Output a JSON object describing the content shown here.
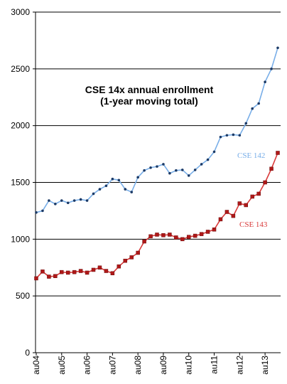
{
  "chart_data": {
    "type": "line",
    "title_lines": [
      "CSE 14x annual enrollment",
      "(1-year moving total)"
    ],
    "xlabel": "",
    "ylabel": "",
    "ylim": [
      0,
      3000
    ],
    "y_ticks": [
      "0",
      "500",
      "1000",
      "1500",
      "2000",
      "2500",
      "3000"
    ],
    "x_ticks": [
      "au04",
      "au05",
      "au06",
      "au07",
      "au08",
      "au09",
      "au10",
      "au11",
      "au12",
      "au13"
    ],
    "grid": true,
    "series": [
      {
        "name": "CSE 142",
        "color": "#78aee8",
        "marker_color": "#1c3a66",
        "values": [
          1235,
          1250,
          1340,
          1310,
          1340,
          1320,
          1340,
          1350,
          1340,
          1400,
          1440,
          1470,
          1530,
          1520,
          1440,
          1415,
          1545,
          1605,
          1630,
          1640,
          1660,
          1580,
          1605,
          1610,
          1560,
          1610,
          1660,
          1700,
          1770,
          1900,
          1915,
          1920,
          1915,
          2020,
          2150,
          2195,
          2385,
          2500,
          2685
        ]
      },
      {
        "name": "CSE 143",
        "color": "#d93a3a",
        "marker_color": "#b01818",
        "values": [
          655,
          715,
          670,
          675,
          710,
          705,
          710,
          720,
          705,
          730,
          750,
          720,
          700,
          760,
          810,
          840,
          880,
          980,
          1025,
          1040,
          1035,
          1040,
          1015,
          1000,
          1020,
          1030,
          1045,
          1065,
          1085,
          1175,
          1240,
          1205,
          1315,
          1300,
          1375,
          1400,
          1500,
          1620,
          1760
        ]
      }
    ]
  }
}
